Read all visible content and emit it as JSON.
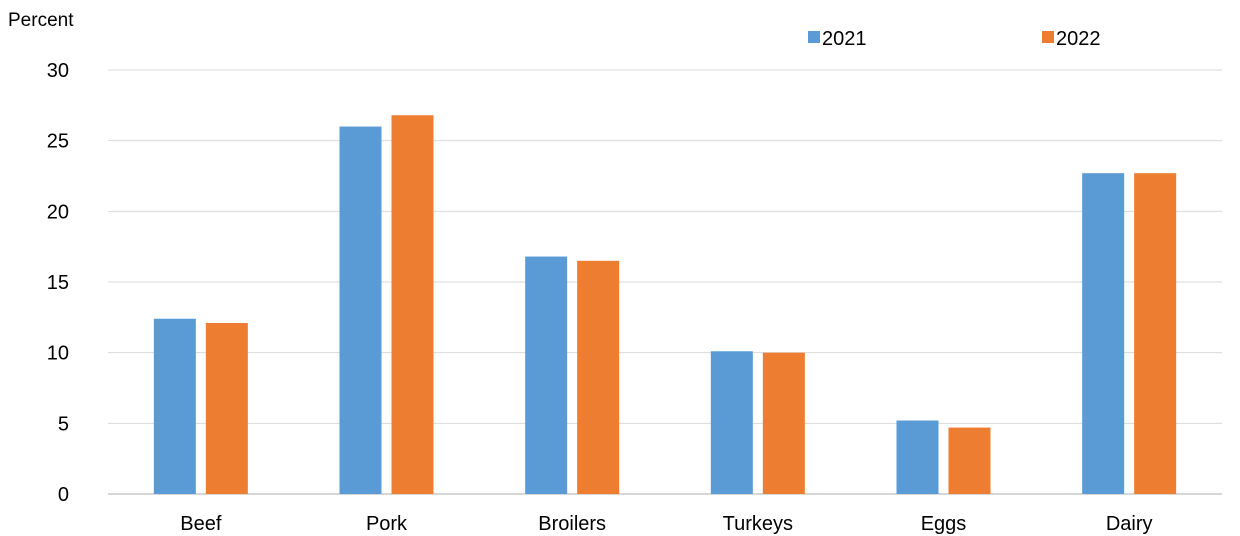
{
  "chart_data": {
    "type": "bar",
    "title": "",
    "xlabel": "",
    "ylabel": "Percent",
    "ylim": [
      0,
      30
    ],
    "yticks": [
      0,
      5,
      10,
      15,
      20,
      25,
      30
    ],
    "grid": true,
    "legend_position": "top-right",
    "categories": [
      "Beef",
      "Pork",
      "Broilers",
      "Turkeys",
      "Eggs",
      "Dairy"
    ],
    "series": [
      {
        "name": "2021",
        "color": "#5b9bd5",
        "values": [
          12.4,
          26.0,
          16.8,
          10.1,
          5.2,
          22.7
        ]
      },
      {
        "name": "2022",
        "color": "#ed7d31",
        "values": [
          12.1,
          26.8,
          16.5,
          10.0,
          4.7,
          22.7
        ]
      }
    ]
  }
}
